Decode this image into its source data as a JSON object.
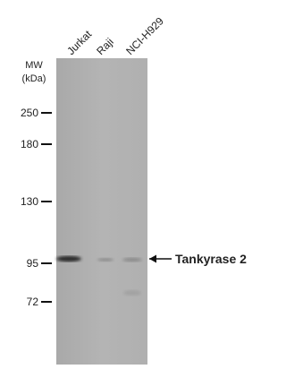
{
  "mw_label": "MW",
  "mw_unit": "(kDa)",
  "lanes": [
    "Jurkat",
    "Raji",
    "NCI-H929"
  ],
  "markers": [
    "250",
    "180",
    "130",
    "95",
    "72"
  ],
  "target": "Tankyrase 2"
}
